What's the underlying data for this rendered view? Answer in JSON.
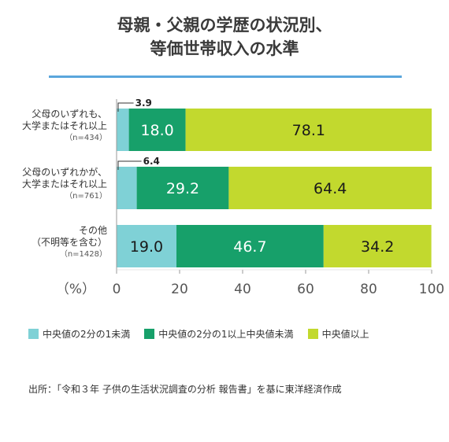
{
  "title_lines": [
    "母親・父親の学歴の状況別、",
    "等価世帯収入の水準"
  ],
  "chart_data": {
    "type": "bar",
    "stacked": true,
    "orientation": "horizontal",
    "title": "母親・父親の学歴の状況別、等価世帯収入の水準",
    "unit_label": "（%）",
    "xlim": [
      0,
      100
    ],
    "ticks": [
      0,
      20,
      40,
      60,
      80,
      100
    ],
    "categories": [
      {
        "lines": [
          "父母のいずれも、",
          "大学またはそれ以上"
        ],
        "n": "（n=434）"
      },
      {
        "lines": [
          "父母のいずれかが、",
          "大学またはそれ以上"
        ],
        "n": "（n=761）"
      },
      {
        "lines": [
          "その他",
          "（不明等を含む）"
        ],
        "n": "（n=1428）"
      }
    ],
    "series": [
      {
        "name": "中央値の2分の1未満",
        "color": "#7fd1d6",
        "label_color": "#1a1a1a",
        "values": [
          3.9,
          6.4,
          19.0
        ],
        "labels": [
          "3.9",
          "6.4",
          "19.0"
        ]
      },
      {
        "name": "中央値の2分の1以上中央値未満",
        "color": "#17a06a",
        "label_color": "#ffffff",
        "values": [
          18.0,
          29.2,
          46.7
        ],
        "labels": [
          "18.0",
          "29.2",
          "46.7"
        ]
      },
      {
        "name": "中央値以上",
        "color": "#c2d92e",
        "label_color": "#1a1a1a",
        "values": [
          78.1,
          64.4,
          34.2
        ],
        "labels": [
          "78.1",
          "64.4",
          "34.2"
        ]
      }
    ],
    "grid": false,
    "legend_position": "bottom"
  },
  "source": "出所：「令和３年 子供の生活状況調査の分析 報告書」を基に東洋経済作成"
}
